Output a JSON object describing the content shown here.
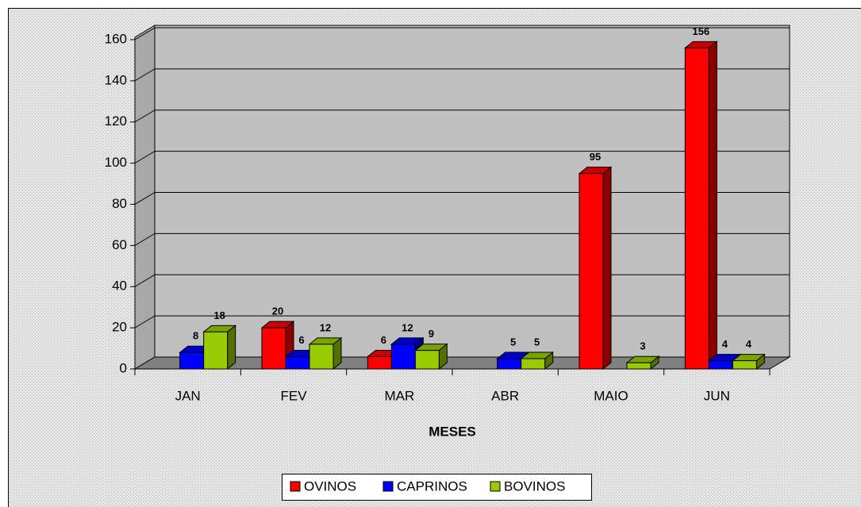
{
  "chart_data": {
    "type": "bar3d",
    "x_label": "MESES",
    "categories": [
      "JAN",
      "FEV",
      "MAR",
      "ABR",
      "MAIO",
      "JUN"
    ],
    "series": [
      {
        "name": "OVINOS",
        "color": "#ff0000",
        "values": [
          null,
          20,
          6,
          null,
          95,
          156
        ]
      },
      {
        "name": "CAPRINOS",
        "color": "#0000ff",
        "values": [
          8,
          6,
          12,
          5,
          null,
          4
        ]
      },
      {
        "name": "BOVINOS",
        "color": "#99cc00",
        "values": [
          18,
          12,
          9,
          5,
          3,
          4
        ]
      }
    ],
    "ylim": [
      0,
      160
    ],
    "yticks": [
      0,
      20,
      40,
      60,
      80,
      100,
      120,
      140,
      160
    ],
    "grid": true,
    "legend": "bottom"
  }
}
